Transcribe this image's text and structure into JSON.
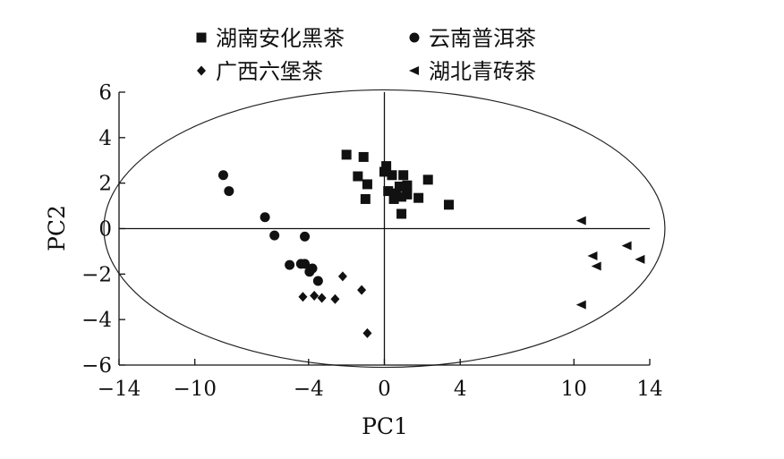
{
  "chart_data": {
    "type": "scatter",
    "xlabel": "PC1",
    "ylabel": "PC2",
    "xlim": [
      -14,
      14
    ],
    "ylim": [
      -6,
      6
    ],
    "xticks": [
      {
        "value": -14,
        "label": "−14"
      },
      {
        "value": -10,
        "label": "−10"
      },
      {
        "value": -4,
        "label": "−4"
      },
      {
        "value": 0,
        "label": "0"
      },
      {
        "value": 4,
        "label": "4"
      },
      {
        "value": 10,
        "label": "10"
      },
      {
        "value": 14,
        "label": "14"
      }
    ],
    "yticks": [
      {
        "value": 6,
        "label": "6"
      },
      {
        "value": 4,
        "label": "4"
      },
      {
        "value": 2,
        "label": "2"
      },
      {
        "value": 0,
        "label": "0"
      },
      {
        "value": -2,
        "label": "−2"
      },
      {
        "value": -4,
        "label": "−4"
      },
      {
        "value": -6,
        "label": "−6"
      }
    ],
    "legend_position": "top",
    "ellipse": {
      "cx": 0,
      "cy": 0,
      "rx": 14.8,
      "ry": 6.1
    },
    "zero_lines": true,
    "grid": false,
    "series": [
      {
        "name": "湖南安化黑茶",
        "marker": "square",
        "points": [
          [
            -2.0,
            3.25
          ],
          [
            -1.1,
            3.15
          ],
          [
            0.1,
            2.75
          ],
          [
            0.0,
            2.5
          ],
          [
            1.0,
            2.35
          ],
          [
            -1.4,
            2.3
          ],
          [
            0.4,
            2.35
          ],
          [
            2.3,
            2.15
          ],
          [
            1.2,
            1.9
          ],
          [
            -0.9,
            1.95
          ],
          [
            0.8,
            1.85
          ],
          [
            0.2,
            1.65
          ],
          [
            0.6,
            1.55
          ],
          [
            1.2,
            1.5
          ],
          [
            0.9,
            1.4
          ],
          [
            1.8,
            1.35
          ],
          [
            0.5,
            1.3
          ],
          [
            -1.0,
            1.3
          ],
          [
            3.4,
            1.05
          ],
          [
            0.9,
            0.65
          ]
        ]
      },
      {
        "name": "云南普洱茶",
        "marker": "circle",
        "points": [
          [
            -8.5,
            2.35
          ],
          [
            -8.2,
            1.65
          ],
          [
            -6.3,
            0.5
          ],
          [
            -5.8,
            -0.3
          ],
          [
            -4.2,
            -0.35
          ],
          [
            -5.0,
            -1.6
          ],
          [
            -4.4,
            -1.55
          ],
          [
            -4.2,
            -1.55
          ],
          [
            -3.8,
            -1.75
          ],
          [
            -3.95,
            -1.9
          ],
          [
            -3.5,
            -2.3
          ]
        ]
      },
      {
        "name": "广西六堡茶",
        "marker": "diamond",
        "points": [
          [
            -2.2,
            -2.1
          ],
          [
            -1.2,
            -2.7
          ],
          [
            -4.3,
            -3.0
          ],
          [
            -3.7,
            -2.95
          ],
          [
            -3.3,
            -3.05
          ],
          [
            -2.6,
            -3.1
          ],
          [
            -0.9,
            -4.6
          ]
        ]
      },
      {
        "name": "湖北青砖茶",
        "marker": "triangle-left",
        "points": [
          [
            10.4,
            0.35
          ],
          [
            12.8,
            -0.75
          ],
          [
            11.0,
            -1.2
          ],
          [
            13.5,
            -1.35
          ],
          [
            11.2,
            -1.65
          ],
          [
            10.4,
            -3.35
          ]
        ]
      }
    ]
  },
  "colors": {
    "marker": "#111111",
    "axis": "#111111",
    "ellipse": "#222222",
    "background": "#ffffff"
  }
}
